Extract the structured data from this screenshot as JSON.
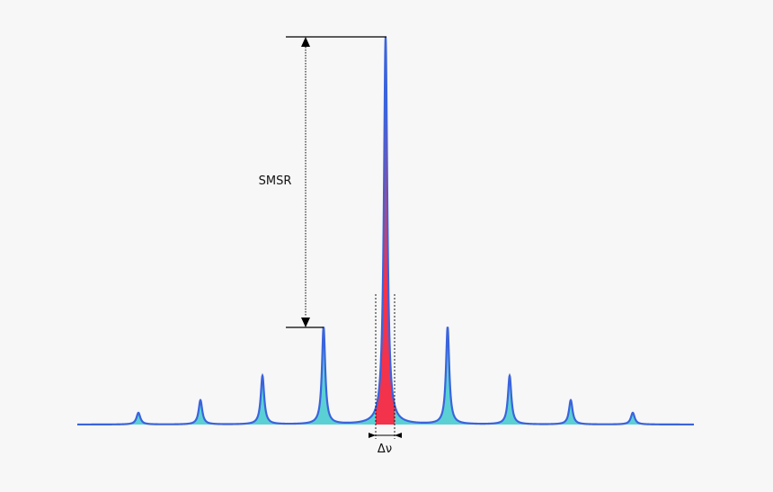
{
  "diagram": {
    "smsr_label": "SMSR",
    "linewidth_label": "Δν",
    "colors": {
      "background": "#f7f7f7",
      "spectrum_line": "#3a63dd",
      "side_mode_fill": "#5ad0d4",
      "main_mode_fill": "#f2334b",
      "annotation": "#000000"
    }
  }
}
